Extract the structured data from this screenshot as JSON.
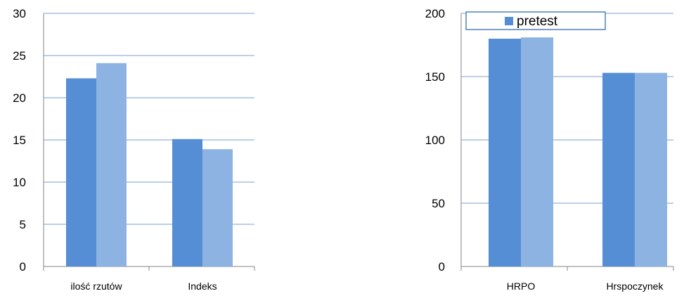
{
  "chart_data": [
    {
      "type": "bar",
      "categories": [
        "ilość rzutów",
        "Indeks"
      ],
      "series": [
        {
          "name": "pretest",
          "values": [
            22.3,
            15.1
          ],
          "color": "#558ed5"
        },
        {
          "values": [
            24.1,
            13.9
          ],
          "color": "#8db3e2"
        }
      ],
      "ylim": [
        0,
        30
      ],
      "yticks": [
        "0",
        "5",
        "10",
        "15",
        "20",
        "25",
        "30"
      ],
      "grid": true,
      "legend": "none"
    },
    {
      "type": "bar",
      "categories": [
        "HRPO",
        "Hrspoczynek"
      ],
      "series": [
        {
          "name": "pretest",
          "values": [
            180,
            153
          ],
          "color": "#558ed5"
        },
        {
          "values": [
            181,
            153
          ],
          "color": "#8db3e2"
        }
      ],
      "ylim": [
        0,
        200
      ],
      "yticks": [
        "0",
        "50",
        "100",
        "150",
        "200"
      ],
      "grid": true,
      "legend": "top-left"
    }
  ]
}
